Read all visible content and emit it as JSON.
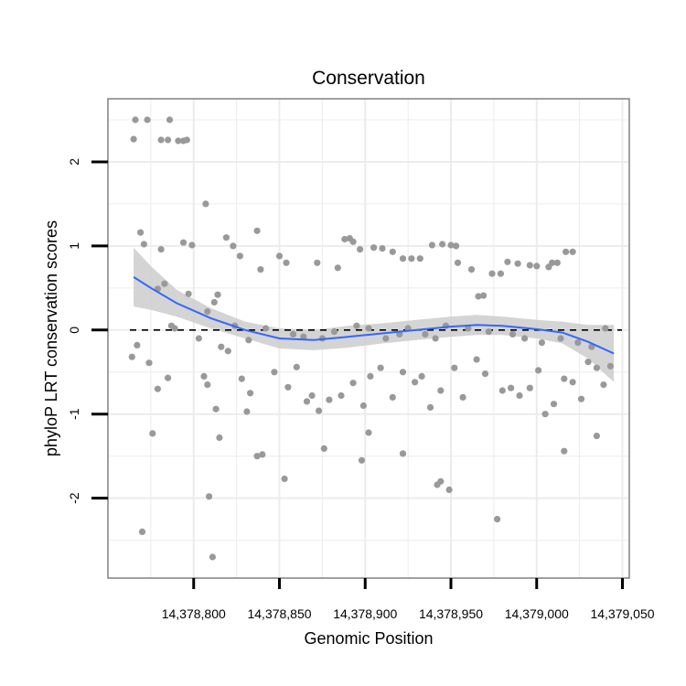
{
  "chart_data": {
    "type": "scatter",
    "title": "Conservation",
    "xlabel": "Genomic Position",
    "ylabel": "phyloP LRT conservation scores",
    "xlim": [
      14378750,
      14379054
    ],
    "ylim": [
      -2.95,
      2.75
    ],
    "x_ticks": [
      14378800,
      14378850,
      14378900,
      14378950,
      14379000,
      14379050
    ],
    "x_tick_labels": [
      "14,378,800",
      "14,378,850",
      "14,378,900",
      "14,378,950",
      "14,379,000",
      "14,379,050"
    ],
    "y_ticks": [
      2,
      1,
      0,
      -1,
      -2
    ],
    "y_tick_labels": [
      "2",
      "1",
      "0",
      "-1",
      "-2"
    ],
    "reference_line": {
      "y": 0,
      "style": "dashed"
    },
    "colors": {
      "points": "#999999",
      "smooth_line": "#3366ff",
      "confidence_band": "#cccccc",
      "grid": "#ececec",
      "panel_border": "#808080",
      "reference_line": "#000000"
    },
    "points": [
      {
        "x": 14378765,
        "y": 2.27
      },
      {
        "x": 14378766,
        "y": 2.5
      },
      {
        "x": 14378773,
        "y": 2.5
      },
      {
        "x": 14378781,
        "y": 2.26
      },
      {
        "x": 14378785,
        "y": 2.26
      },
      {
        "x": 14378786,
        "y": 2.5
      },
      {
        "x": 14378791,
        "y": 2.25
      },
      {
        "x": 14378794,
        "y": 2.25
      },
      {
        "x": 14378796,
        "y": 2.26
      },
      {
        "x": 14378807,
        "y": 1.5
      },
      {
        "x": 14378769,
        "y": 1.16
      },
      {
        "x": 14378771,
        "y": 1.02
      },
      {
        "x": 14378781,
        "y": 0.96
      },
      {
        "x": 14378794,
        "y": 1.04
      },
      {
        "x": 14378799,
        "y": 1.01
      },
      {
        "x": 14378814,
        "y": 0.42
      },
      {
        "x": 14378819,
        "y": 1.1
      },
      {
        "x": 14378823,
        "y": 1.0
      },
      {
        "x": 14378827,
        "y": 0.88
      },
      {
        "x": 14378837,
        "y": 1.18
      },
      {
        "x": 14378839,
        "y": 0.72
      },
      {
        "x": 14378850,
        "y": 0.88
      },
      {
        "x": 14378854,
        "y": 0.8
      },
      {
        "x": 14378872,
        "y": 0.8
      },
      {
        "x": 14378884,
        "y": 0.74
      },
      {
        "x": 14378888,
        "y": 1.08
      },
      {
        "x": 14378891,
        "y": 1.09
      },
      {
        "x": 14378893,
        "y": 1.05
      },
      {
        "x": 14378897,
        "y": 0.96
      },
      {
        "x": 14378905,
        "y": 0.98
      },
      {
        "x": 14378910,
        "y": 0.97
      },
      {
        "x": 14378916,
        "y": 0.93
      },
      {
        "x": 14378922,
        "y": 0.85
      },
      {
        "x": 14378927,
        "y": 0.85
      },
      {
        "x": 14378932,
        "y": 0.85
      },
      {
        "x": 14378939,
        "y": 1.01
      },
      {
        "x": 14378945,
        "y": 1.02
      },
      {
        "x": 14378950,
        "y": 1.01
      },
      {
        "x": 14378953,
        "y": 1.0
      },
      {
        "x": 14378954,
        "y": 0.8
      },
      {
        "x": 14378962,
        "y": 0.72
      },
      {
        "x": 14378966,
        "y": 0.4
      },
      {
        "x": 14378969,
        "y": 0.41
      },
      {
        "x": 14378974,
        "y": 0.67
      },
      {
        "x": 14378979,
        "y": 0.67
      },
      {
        "x": 14378983,
        "y": 0.81
      },
      {
        "x": 14378989,
        "y": 0.79
      },
      {
        "x": 14378996,
        "y": 0.77
      },
      {
        "x": 14379000,
        "y": 0.76
      },
      {
        "x": 14379007,
        "y": 0.75
      },
      {
        "x": 14379009,
        "y": 0.8
      },
      {
        "x": 14379012,
        "y": 0.8
      },
      {
        "x": 14379017,
        "y": 0.93
      },
      {
        "x": 14379021,
        "y": 0.93
      },
      {
        "x": 14378779,
        "y": 0.49
      },
      {
        "x": 14378783,
        "y": 0.55
      },
      {
        "x": 14378787,
        "y": 0.05
      },
      {
        "x": 14378789,
        "y": 0.02
      },
      {
        "x": 14378797,
        "y": 0.43
      },
      {
        "x": 14378803,
        "y": -0.1
      },
      {
        "x": 14378808,
        "y": 0.22
      },
      {
        "x": 14378812,
        "y": 0.33
      },
      {
        "x": 14378816,
        "y": -0.2
      },
      {
        "x": 14378824,
        "y": 0.05
      },
      {
        "x": 14378832,
        "y": -0.12
      },
      {
        "x": 14378842,
        "y": 0.02
      },
      {
        "x": 14378858,
        "y": -0.05
      },
      {
        "x": 14378864,
        "y": -0.08
      },
      {
        "x": 14378875,
        "y": -0.1
      },
      {
        "x": 14378882,
        "y": -0.02
      },
      {
        "x": 14378895,
        "y": 0.05
      },
      {
        "x": 14378902,
        "y": 0.02
      },
      {
        "x": 14378912,
        "y": -0.1
      },
      {
        "x": 14378920,
        "y": -0.05
      },
      {
        "x": 14378925,
        "y": 0.02
      },
      {
        "x": 14378935,
        "y": -0.05
      },
      {
        "x": 14378941,
        "y": -0.1
      },
      {
        "x": 14378947,
        "y": 0.05
      },
      {
        "x": 14378960,
        "y": 0.02
      },
      {
        "x": 14378972,
        "y": -0.02
      },
      {
        "x": 14378986,
        "y": -0.05
      },
      {
        "x": 14378993,
        "y": -0.1
      },
      {
        "x": 14379003,
        "y": -0.15
      },
      {
        "x": 14379014,
        "y": -0.1
      },
      {
        "x": 14379024,
        "y": -0.15
      },
      {
        "x": 14379032,
        "y": -0.2
      },
      {
        "x": 14379040,
        "y": 0.02
      },
      {
        "x": 14378764,
        "y": -0.32
      },
      {
        "x": 14378767,
        "y": -0.18
      },
      {
        "x": 14378774,
        "y": -0.39
      },
      {
        "x": 14378779,
        "y": -0.7
      },
      {
        "x": 14378785,
        "y": -0.57
      },
      {
        "x": 14378806,
        "y": -0.55
      },
      {
        "x": 14378808,
        "y": -0.65
      },
      {
        "x": 14378813,
        "y": -0.94
      },
      {
        "x": 14378820,
        "y": -0.25
      },
      {
        "x": 14378828,
        "y": -0.58
      },
      {
        "x": 14378831,
        "y": -0.97
      },
      {
        "x": 14378833,
        "y": -0.75
      },
      {
        "x": 14378847,
        "y": -0.5
      },
      {
        "x": 14378855,
        "y": -0.68
      },
      {
        "x": 14378860,
        "y": -0.44
      },
      {
        "x": 14378866,
        "y": -0.85
      },
      {
        "x": 14378869,
        "y": -0.78
      },
      {
        "x": 14378873,
        "y": -0.96
      },
      {
        "x": 14378879,
        "y": -0.83
      },
      {
        "x": 14378886,
        "y": -0.78
      },
      {
        "x": 14378893,
        "y": -0.63
      },
      {
        "x": 14378899,
        "y": -0.9
      },
      {
        "x": 14378903,
        "y": -0.55
      },
      {
        "x": 14378909,
        "y": -0.45
      },
      {
        "x": 14378916,
        "y": -0.8
      },
      {
        "x": 14378922,
        "y": -0.5
      },
      {
        "x": 14378929,
        "y": -0.62
      },
      {
        "x": 14378933,
        "y": -0.55
      },
      {
        "x": 14378938,
        "y": -0.92
      },
      {
        "x": 14378944,
        "y": -0.72
      },
      {
        "x": 14378952,
        "y": -0.45
      },
      {
        "x": 14378957,
        "y": -0.8
      },
      {
        "x": 14378965,
        "y": -0.35
      },
      {
        "x": 14378970,
        "y": -0.52
      },
      {
        "x": 14378980,
        "y": -0.72
      },
      {
        "x": 14378985,
        "y": -0.69
      },
      {
        "x": 14378990,
        "y": -0.78
      },
      {
        "x": 14378996,
        "y": -0.69
      },
      {
        "x": 14379001,
        "y": -0.48
      },
      {
        "x": 14379005,
        "y": -1.0
      },
      {
        "x": 14379010,
        "y": -0.88
      },
      {
        "x": 14379016,
        "y": -0.58
      },
      {
        "x": 14379021,
        "y": -0.62
      },
      {
        "x": 14379026,
        "y": -0.82
      },
      {
        "x": 14379030,
        "y": -0.38
      },
      {
        "x": 14379035,
        "y": -0.45
      },
      {
        "x": 14379039,
        "y": -0.65
      },
      {
        "x": 14379043,
        "y": -0.43
      },
      {
        "x": 14378776,
        "y": -1.23
      },
      {
        "x": 14378815,
        "y": -1.28
      },
      {
        "x": 14378837,
        "y": -1.5
      },
      {
        "x": 14378840,
        "y": -1.48
      },
      {
        "x": 14378853,
        "y": -1.77
      },
      {
        "x": 14378876,
        "y": -1.41
      },
      {
        "x": 14378898,
        "y": -1.55
      },
      {
        "x": 14378902,
        "y": -1.22
      },
      {
        "x": 14378922,
        "y": -1.47
      },
      {
        "x": 14378942,
        "y": -1.84
      },
      {
        "x": 14378944,
        "y": -1.8
      },
      {
        "x": 14378949,
        "y": -1.9
      },
      {
        "x": 14379016,
        "y": -1.44
      },
      {
        "x": 14379035,
        "y": -1.26
      },
      {
        "x": 14378809,
        "y": -1.98
      },
      {
        "x": 14378770,
        "y": -2.4
      },
      {
        "x": 14378811,
        "y": -2.7
      },
      {
        "x": 14378977,
        "y": -2.25
      }
    ],
    "smooth_curve": [
      {
        "x": 14378765,
        "y": 0.63
      },
      {
        "x": 14378775,
        "y": 0.5
      },
      {
        "x": 14378790,
        "y": 0.32
      },
      {
        "x": 14378810,
        "y": 0.14
      },
      {
        "x": 14378830,
        "y": 0.0
      },
      {
        "x": 14378850,
        "y": -0.1
      },
      {
        "x": 14378870,
        "y": -0.12
      },
      {
        "x": 14378890,
        "y": -0.08
      },
      {
        "x": 14378910,
        "y": -0.04
      },
      {
        "x": 14378930,
        "y": 0.0
      },
      {
        "x": 14378950,
        "y": 0.04
      },
      {
        "x": 14378965,
        "y": 0.06
      },
      {
        "x": 14378980,
        "y": 0.05
      },
      {
        "x": 14379000,
        "y": 0.01
      },
      {
        "x": 14379015,
        "y": -0.03
      },
      {
        "x": 14379030,
        "y": -0.14
      },
      {
        "x": 14379045,
        "y": -0.28
      }
    ],
    "confidence_upper": [
      {
        "x": 14378765,
        "y": 0.98
      },
      {
        "x": 14378775,
        "y": 0.76
      },
      {
        "x": 14378790,
        "y": 0.48
      },
      {
        "x": 14378810,
        "y": 0.26
      },
      {
        "x": 14378830,
        "y": 0.1
      },
      {
        "x": 14378850,
        "y": 0.02
      },
      {
        "x": 14378870,
        "y": 0.0
      },
      {
        "x": 14378890,
        "y": 0.05
      },
      {
        "x": 14378910,
        "y": 0.08
      },
      {
        "x": 14378930,
        "y": 0.12
      },
      {
        "x": 14378950,
        "y": 0.16
      },
      {
        "x": 14378965,
        "y": 0.18
      },
      {
        "x": 14378980,
        "y": 0.16
      },
      {
        "x": 14379000,
        "y": 0.12
      },
      {
        "x": 14379015,
        "y": 0.1
      },
      {
        "x": 14379030,
        "y": 0.06
      },
      {
        "x": 14379045,
        "y": 0.06
      }
    ],
    "confidence_lower": [
      {
        "x": 14378765,
        "y": 0.28
      },
      {
        "x": 14378775,
        "y": 0.24
      },
      {
        "x": 14378790,
        "y": 0.16
      },
      {
        "x": 14378810,
        "y": 0.02
      },
      {
        "x": 14378830,
        "y": -0.1
      },
      {
        "x": 14378850,
        "y": -0.22
      },
      {
        "x": 14378870,
        "y": -0.24
      },
      {
        "x": 14378890,
        "y": -0.21
      },
      {
        "x": 14378910,
        "y": -0.16
      },
      {
        "x": 14378930,
        "y": -0.12
      },
      {
        "x": 14378950,
        "y": -0.08
      },
      {
        "x": 14378965,
        "y": -0.06
      },
      {
        "x": 14378980,
        "y": -0.06
      },
      {
        "x": 14379000,
        "y": -0.1
      },
      {
        "x": 14379015,
        "y": -0.16
      },
      {
        "x": 14379030,
        "y": -0.34
      },
      {
        "x": 14379045,
        "y": -0.62
      }
    ]
  }
}
